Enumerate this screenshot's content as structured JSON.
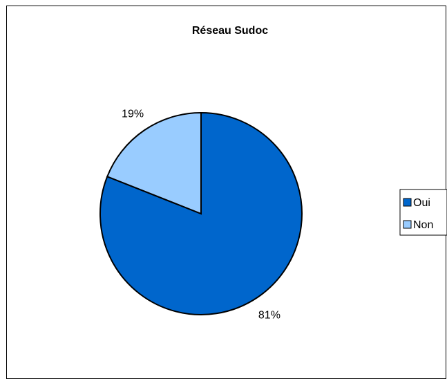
{
  "chart_data": {
    "type": "pie",
    "title": "Réseau Sudoc",
    "categories": [
      "Oui",
      "Non"
    ],
    "values": [
      81,
      19
    ],
    "data_labels": [
      "81%",
      "19%"
    ],
    "colors": [
      "#0066CC",
      "#99CCFF"
    ],
    "legend_position": "right"
  }
}
